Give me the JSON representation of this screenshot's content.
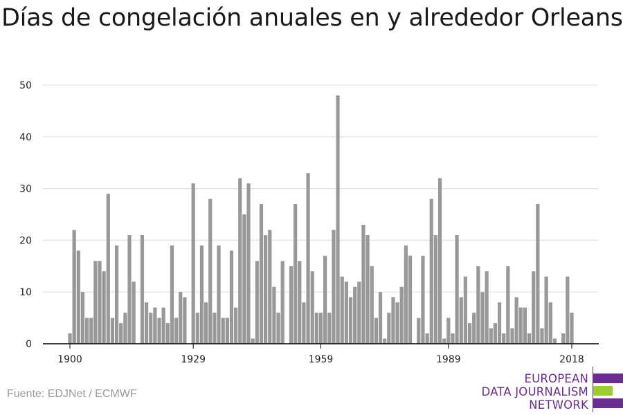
{
  "title": "Días de congelación anuales en y alrededor Orleans",
  "source": "Fuente: EDJNet / ECMWF",
  "logo": {
    "lines": [
      "EUROPEAN",
      "DATA JOURNALISM",
      "NETWORK"
    ],
    "purple": "#6a2c91",
    "green": "#9acd32"
  },
  "colors": {
    "bar": "#999999",
    "grid": "#dddddd",
    "axis": "#000000"
  },
  "chart_data": {
    "type": "bar",
    "title": "Días de congelación anuales en y alrededor Orleans",
    "xlabel": "",
    "ylabel": "",
    "x_start": 1900,
    "x_end": 2018,
    "x_ticks": [
      1900,
      1929,
      1959,
      1989,
      2018
    ],
    "y_ticks": [
      0,
      10,
      20,
      30,
      40,
      50
    ],
    "ylim": [
      0,
      50
    ],
    "grid": true,
    "values": [
      2,
      22,
      18,
      10,
      5,
      5,
      16,
      16,
      14,
      29,
      5,
      19,
      4,
      6,
      21,
      12,
      0,
      21,
      8,
      6,
      7,
      5,
      7,
      4,
      19,
      5,
      10,
      9,
      0,
      31,
      6,
      19,
      8,
      28,
      6,
      19,
      5,
      5,
      18,
      7,
      32,
      25,
      31,
      1,
      16,
      27,
      21,
      22,
      11,
      6,
      16,
      0,
      15,
      27,
      16,
      8,
      33,
      14,
      6,
      6,
      17,
      6,
      22,
      48,
      13,
      12,
      9,
      11,
      12,
      23,
      21,
      15,
      5,
      10,
      1,
      6,
      9,
      8,
      11,
      19,
      17,
      0,
      5,
      17,
      2,
      28,
      21,
      32,
      1,
      5,
      2,
      21,
      9,
      13,
      4,
      6,
      15,
      10,
      14,
      3,
      4,
      8,
      2,
      15,
      3,
      9,
      7,
      7,
      2,
      14,
      27,
      3,
      13,
      8,
      1,
      0,
      2,
      13,
      6
    ]
  }
}
